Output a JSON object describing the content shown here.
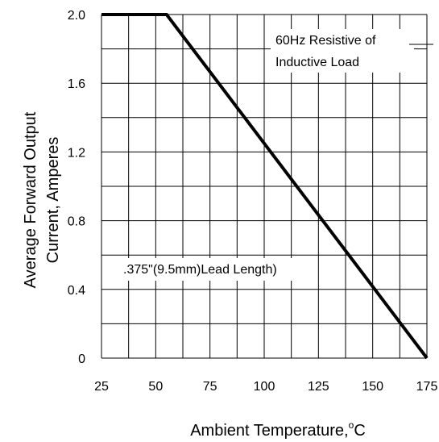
{
  "chart_data": {
    "type": "line",
    "xlabel": "Ambient Temperature,",
    "xlabel_unit": "C",
    "xlabel_degree": "o",
    "ylabel_line1": "Average Forward Output",
    "ylabel_line2": "Current, Amperes",
    "x_ticks": [
      "25",
      "50",
      "75",
      "100",
      "125",
      "150",
      "175"
    ],
    "y_ticks": [
      "0",
      "0.4",
      "0.8",
      "1.2",
      "1.6",
      "2.0"
    ],
    "xlim": [
      25,
      175
    ],
    "ylim": [
      0,
      2.0
    ],
    "grid": true,
    "series": [
      {
        "x": [
          25,
          55,
          175
        ],
        "y": [
          2.0,
          2.0,
          0
        ],
        "color": "#000000"
      }
    ],
    "annotations": {
      "load_line1": "60Hz Resistive of",
      "load_line2": "Inductive Load",
      "lead_length": ".375\"(9.5mm)Lead Length)"
    }
  }
}
